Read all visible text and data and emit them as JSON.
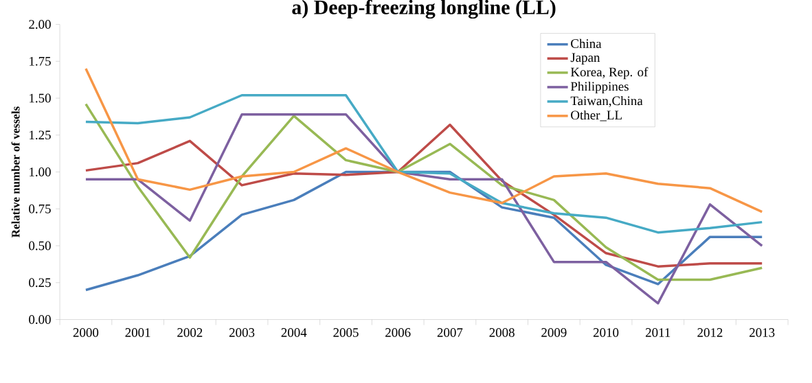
{
  "chart_data": {
    "type": "line",
    "title": "a) Deep-freezing longline (LL)",
    "ylabel": "Relative number of vessels",
    "categories": [
      "2000",
      "2001",
      "2002",
      "2003",
      "2004",
      "2005",
      "2006",
      "2007",
      "2008",
      "2009",
      "2010",
      "2011",
      "2012",
      "2013"
    ],
    "series": [
      {
        "name": "China",
        "color": "#4a7ebb",
        "values": [
          0.2,
          0.3,
          0.43,
          0.71,
          0.81,
          1.0,
          1.0,
          1.0,
          0.76,
          0.69,
          0.37,
          0.24,
          0.56,
          0.56
        ]
      },
      {
        "name": "Japan",
        "color": "#be4b48",
        "values": [
          1.01,
          1.06,
          1.21,
          0.91,
          0.99,
          0.98,
          1.0,
          1.32,
          0.94,
          0.71,
          0.45,
          0.36,
          0.38,
          0.38
        ]
      },
      {
        "name": "Korea, Rep. of",
        "color": "#98b954",
        "values": [
          1.46,
          0.9,
          0.42,
          0.97,
          1.38,
          1.08,
          1.0,
          1.19,
          0.91,
          0.81,
          0.49,
          0.27,
          0.27,
          0.35
        ]
      },
      {
        "name": "Philippines",
        "color": "#7d60a0",
        "values": [
          0.95,
          0.95,
          0.67,
          1.39,
          1.39,
          1.39,
          1.0,
          0.95,
          0.95,
          0.39,
          0.39,
          0.11,
          0.78,
          0.5
        ]
      },
      {
        "name": "Taiwan,China",
        "color": "#46aac5",
        "values": [
          1.34,
          1.33,
          1.37,
          1.52,
          1.52,
          1.52,
          1.0,
          0.99,
          0.79,
          0.72,
          0.69,
          0.59,
          0.62,
          0.66
        ]
      },
      {
        "name": "Other_LL",
        "color": "#f79646",
        "values": [
          1.7,
          0.95,
          0.88,
          0.97,
          1.0,
          1.16,
          1.0,
          0.86,
          0.79,
          0.97,
          0.99,
          0.92,
          0.89,
          0.73
        ]
      }
    ],
    "ylim": [
      0,
      2
    ],
    "yticks": [
      {
        "value": 0,
        "label": "0.00"
      },
      {
        "value": 0.25,
        "label": "0.25"
      },
      {
        "value": 0.5,
        "label": "0.50"
      },
      {
        "value": 0.75,
        "label": "0.75"
      },
      {
        "value": 1,
        "label": "1.00"
      },
      {
        "value": 1.25,
        "label": "1.25"
      },
      {
        "value": 1.5,
        "label": "1.50"
      },
      {
        "value": 1.75,
        "label": "1.75"
      },
      {
        "value": 2,
        "label": "2.00"
      }
    ],
    "legend": "top right",
    "grid": false,
    "line_style": "solid"
  }
}
